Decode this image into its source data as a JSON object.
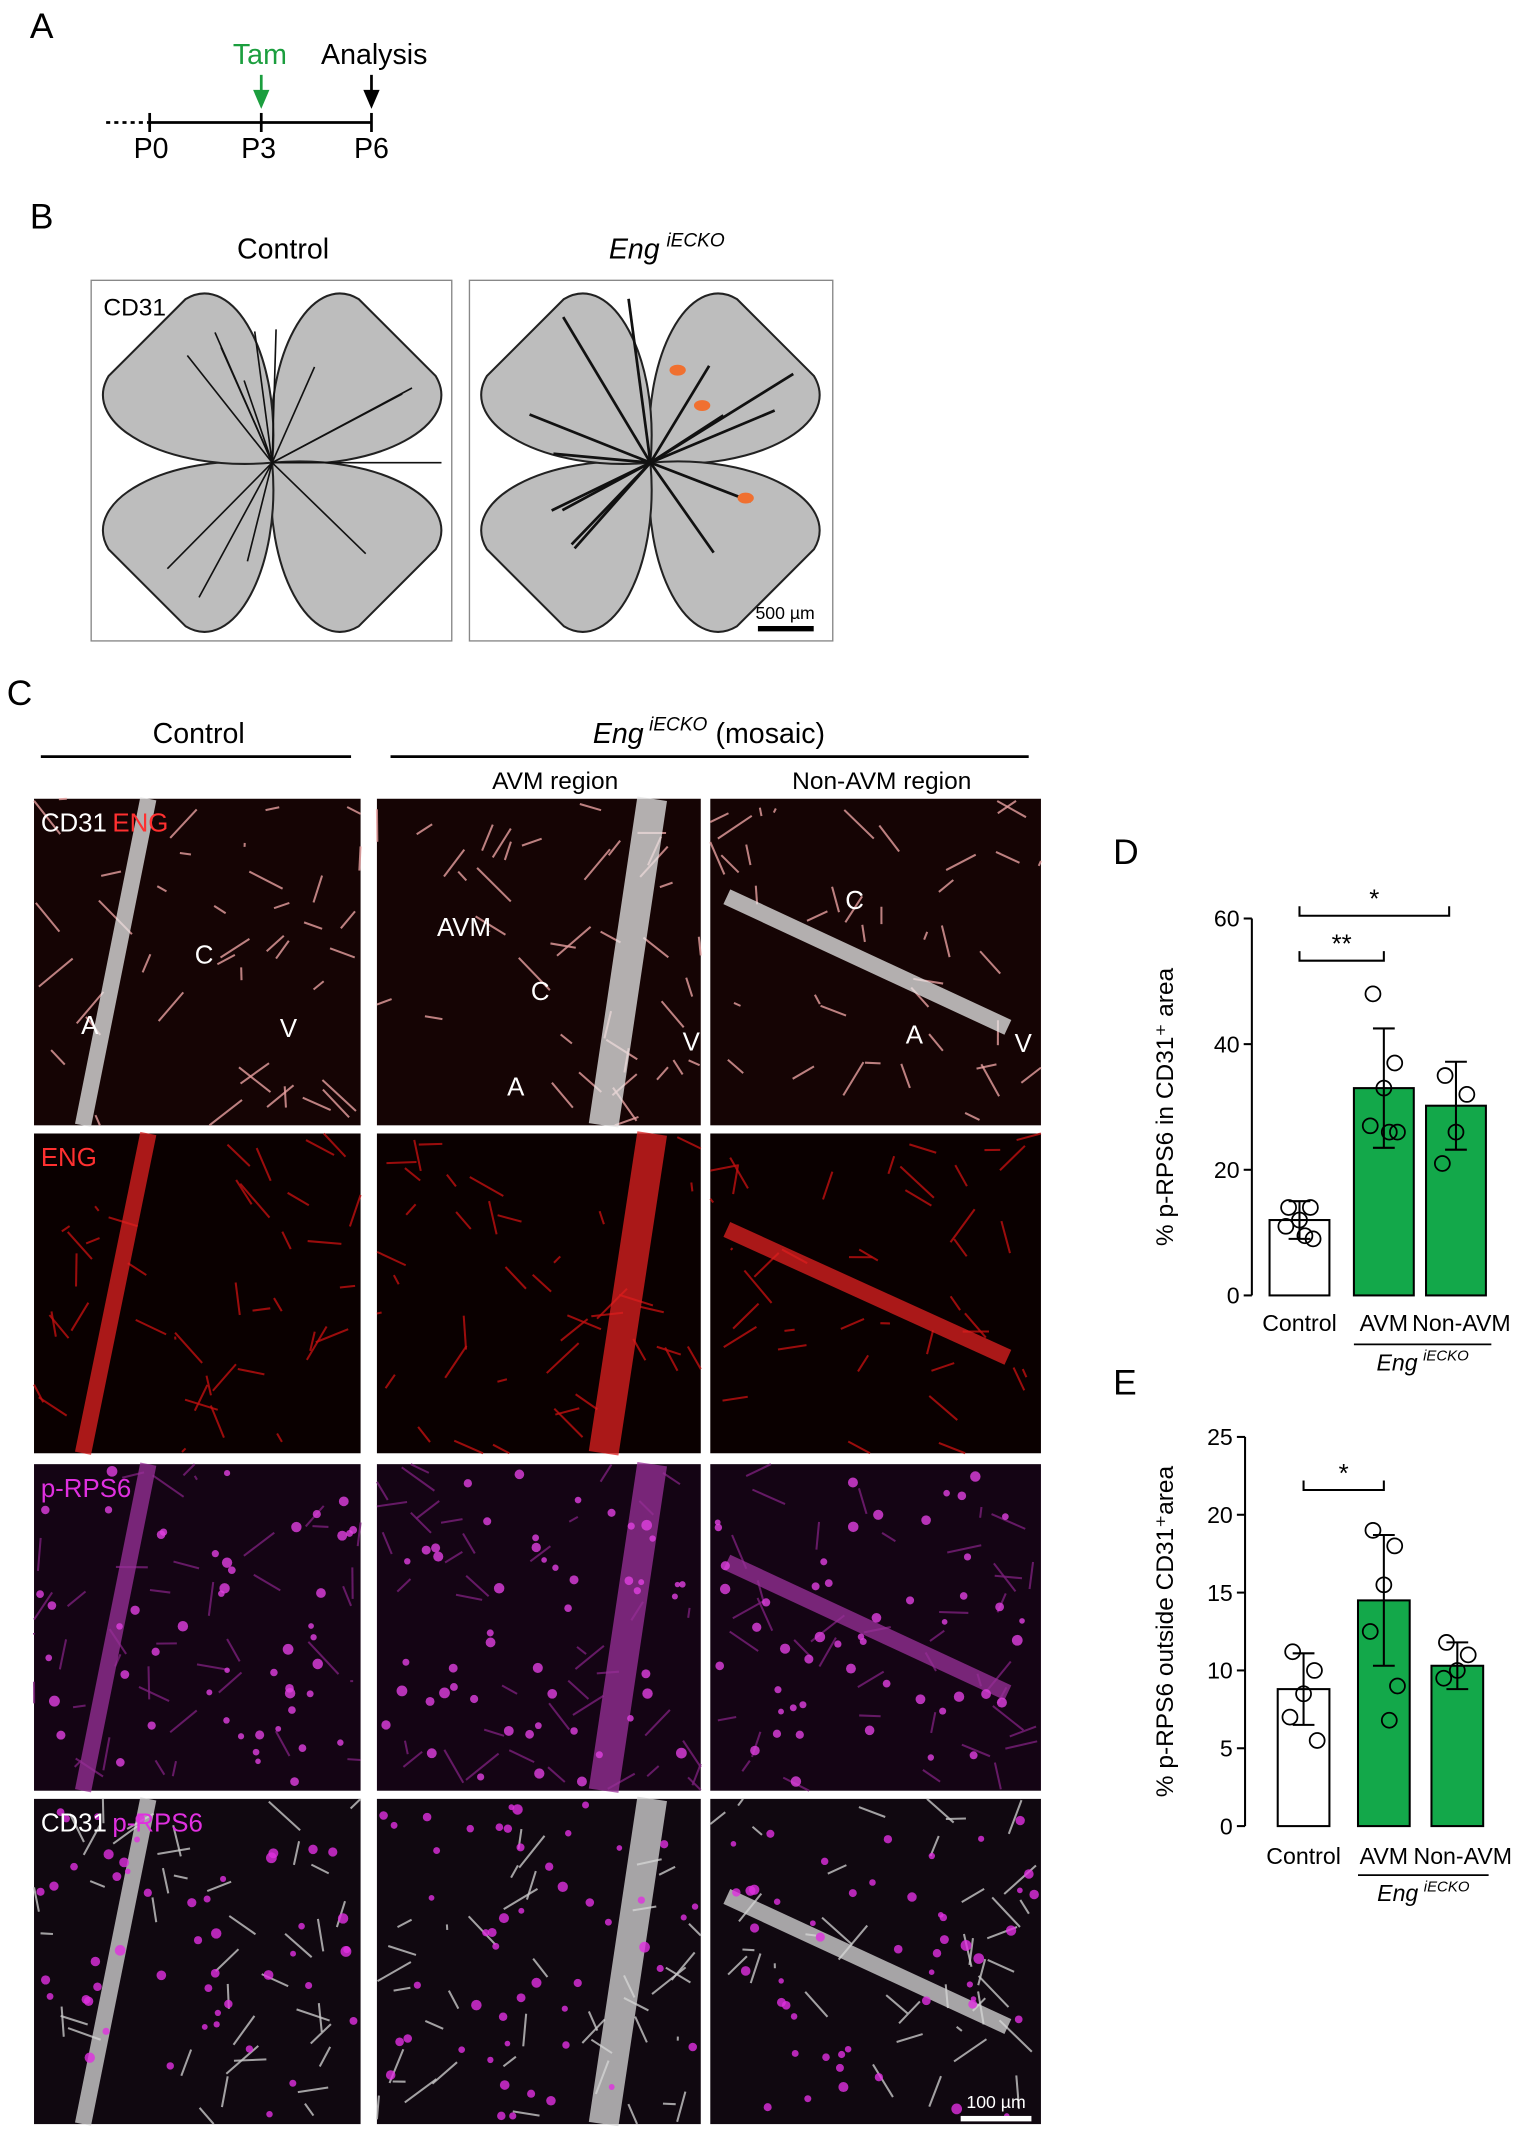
{
  "panel_labels": [
    "A",
    "B",
    "C",
    "D",
    "E"
  ],
  "timeline": {
    "tam": "Tam",
    "analysis": "Analysis",
    "days": [
      "P0",
      "P3",
      "P6"
    ]
  },
  "panel_b": {
    "titles": [
      "Control",
      "Eng"
    ],
    "title_sup": "iECKO",
    "stain": "CD31",
    "scale_bar": "500 µm"
  },
  "panel_c": {
    "control": "Control",
    "mutant": "Eng",
    "mutant_sup": "iECKO",
    "mosaic": "(mosaic)",
    "regions": [
      "AVM region",
      "Non-AVM region"
    ],
    "row_labels": [
      [
        "CD31",
        "ENG"
      ],
      [
        "ENG"
      ],
      [
        "p-RPS6"
      ],
      [
        "CD31",
        "p-RPS6"
      ]
    ],
    "annotations": {
      "control": [
        "C",
        "A",
        "V"
      ],
      "avm": [
        "AVM",
        "C",
        "A",
        "V"
      ],
      "non_avm": [
        "C",
        "A",
        "V"
      ]
    },
    "scale_bar": "100 µm"
  },
  "chart_data": [
    {
      "type": "bar",
      "title": "D",
      "ylabel": "% p-RPS6 in CD31⁺ area",
      "categories": [
        "Control",
        "AVM",
        "Non-AVM"
      ],
      "group_label": "Eng",
      "group_sup": "iECKO",
      "colors": [
        "#ffffff",
        "#13a84a",
        "#13a84a"
      ],
      "values": [
        12,
        33,
        30.2
      ],
      "errors": [
        3,
        9.5,
        7
      ],
      "points": [
        [
          14,
          14,
          12,
          11,
          9,
          9.5
        ],
        [
          48,
          37,
          33,
          27,
          26,
          26
        ],
        [
          35,
          32,
          26,
          21
        ]
      ],
      "ylim": [
        0,
        60
      ],
      "yticks": [
        0,
        20,
        40,
        60
      ],
      "significance": [
        {
          "from": "Control",
          "to": "AVM",
          "label": "**"
        },
        {
          "from": "Control",
          "to": "Non-AVM",
          "label": "*"
        }
      ]
    },
    {
      "type": "bar",
      "title": "E",
      "ylabel": "% p-RPS6 outside CD31⁺area",
      "categories": [
        "Control",
        "AVM",
        "Non-AVM"
      ],
      "group_label": "Eng",
      "group_sup": "iECKO",
      "colors": [
        "#ffffff",
        "#13a84a",
        "#13a84a"
      ],
      "values": [
        8.8,
        14.5,
        10.3
      ],
      "errors": [
        2.3,
        4.2,
        1.5
      ],
      "points": [
        [
          11.2,
          10,
          8.5,
          7,
          5.5
        ],
        [
          19,
          18,
          15.5,
          12.5,
          9,
          6.8
        ],
        [
          11.8,
          11,
          10,
          9.5
        ]
      ],
      "ylim": [
        0,
        25
      ],
      "yticks": [
        0,
        5,
        10,
        15,
        20,
        25
      ],
      "significance": [
        {
          "from": "Control",
          "to": "AVM",
          "label": "*"
        }
      ]
    }
  ]
}
